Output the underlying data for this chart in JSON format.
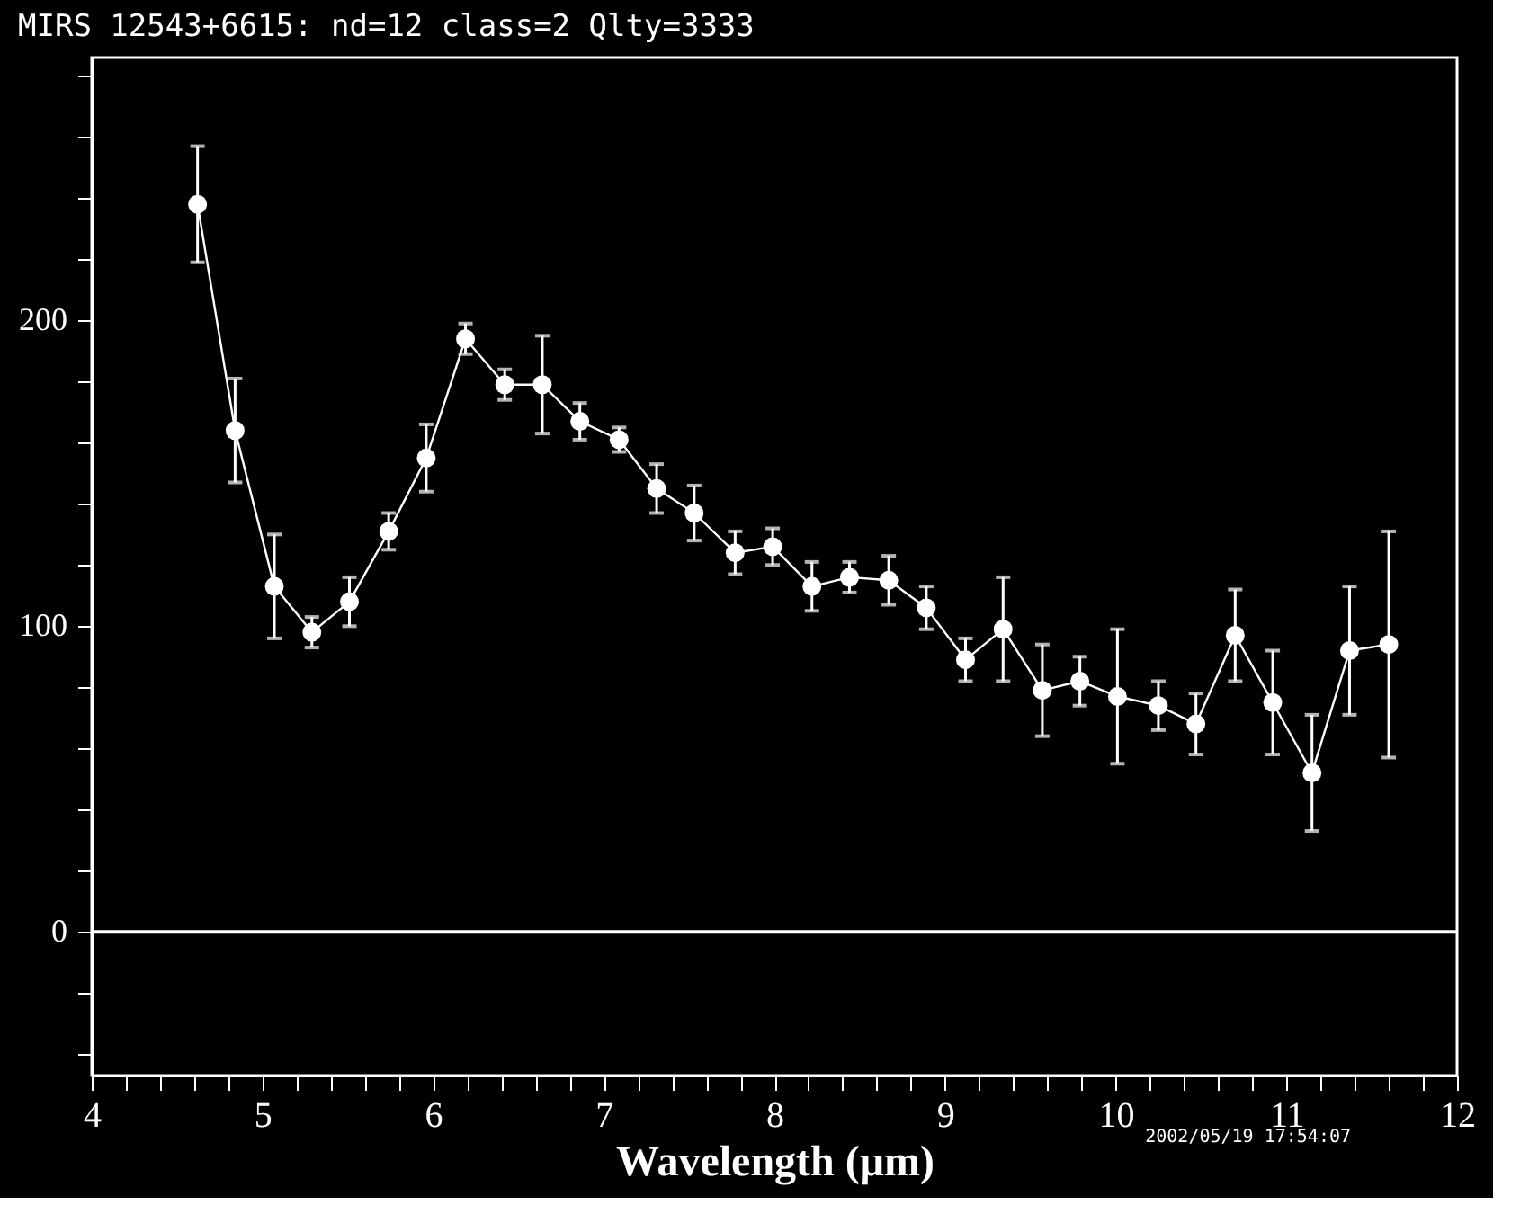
{
  "chart_data": {
    "type": "line",
    "title": "MIRS 12543+6615:    nd=12   class=2   Qlty=3333",
    "xlabel": "Wavelength (μm)",
    "annotations": [
      "2002/05/19 17:54:07"
    ],
    "x": [
      4.62,
      4.84,
      5.07,
      5.29,
      5.51,
      5.74,
      5.96,
      6.19,
      6.42,
      6.64,
      6.86,
      7.09,
      7.31,
      7.53,
      7.77,
      7.99,
      8.22,
      8.44,
      8.67,
      8.89,
      9.12,
      9.34,
      9.57,
      9.79,
      10.01,
      10.25,
      10.47,
      10.7,
      10.92,
      11.15,
      11.37,
      11.6
    ],
    "series": [
      {
        "color": "#ffffff",
        "values": [
          238,
          164,
          113,
          98,
          108,
          131,
          155,
          194,
          179,
          179,
          167,
          161,
          145,
          137,
          124,
          126,
          113,
          116,
          115,
          106,
          89,
          99,
          79,
          82,
          77,
          74,
          68,
          97,
          75,
          52,
          92,
          94
        ],
        "errors": [
          19,
          17,
          17,
          5,
          8,
          6,
          11,
          5,
          5,
          16,
          6,
          4,
          8,
          9,
          7,
          6,
          8,
          5,
          8,
          7,
          7,
          17,
          15,
          8,
          22,
          8,
          10,
          15,
          17,
          19,
          21,
          37
        ]
      }
    ],
    "xlim": [
      4,
      12
    ],
    "ylim": [
      -47,
      286
    ],
    "xticks": [
      4,
      {
        "value": 4.2,
        "label": null
      },
      {
        "value": 4.4,
        "label": null
      },
      {
        "value": 4.6,
        "label": null
      },
      {
        "value": 4.8,
        "label": null
      },
      5,
      {
        "value": 5.2,
        "label": null
      },
      {
        "value": 5.4,
        "label": null
      },
      {
        "value": 5.6,
        "label": null
      },
      {
        "value": 5.8,
        "label": null
      },
      6,
      {
        "value": 6.2,
        "label": null
      },
      {
        "value": 6.4,
        "label": null
      },
      {
        "value": 6.6,
        "label": null
      },
      {
        "value": 6.8,
        "label": null
      },
      7,
      {
        "value": 7.2,
        "label": null
      },
      {
        "value": 7.4,
        "label": null
      },
      {
        "value": 7.6,
        "label": null
      },
      {
        "value": 7.8,
        "label": null
      },
      8,
      {
        "value": 8.2,
        "label": null
      },
      {
        "value": 8.4,
        "label": null
      },
      {
        "value": 8.6,
        "label": null
      },
      {
        "value": 8.8,
        "label": null
      },
      9,
      {
        "value": 9.2,
        "label": null
      },
      {
        "value": 9.4,
        "label": null
      },
      {
        "value": 9.6,
        "label": null
      },
      {
        "value": 9.8,
        "label": null
      },
      10,
      {
        "value": 10.2,
        "label": null
      },
      {
        "value": 10.4,
        "label": null
      },
      {
        "value": 10.6,
        "label": null
      },
      {
        "value": 10.8,
        "label": null
      },
      11,
      {
        "value": 11.2,
        "label": null
      },
      {
        "value": 11.4,
        "label": null
      },
      {
        "value": 11.6,
        "label": null
      },
      {
        "value": 11.8,
        "label": null
      },
      12
    ],
    "yticks": [
      {
        "value": -40,
        "label": null
      },
      {
        "value": -20,
        "label": null
      },
      0,
      {
        "value": 20,
        "label": null
      },
      {
        "value": 40,
        "label": null
      },
      {
        "value": 60,
        "label": null
      },
      {
        "value": 80,
        "label": null
      },
      100,
      {
        "value": 120,
        "label": null
      },
      {
        "value": 140,
        "label": null
      },
      {
        "value": 160,
        "label": null
      },
      {
        "value": 180,
        "label": null
      },
      200,
      {
        "value": 220,
        "label": null
      },
      {
        "value": 240,
        "label": null
      },
      {
        "value": 260,
        "label": null
      },
      {
        "value": 280,
        "label": null
      }
    ],
    "ref_lines": [
      {
        "axis": "y",
        "value": 0,
        "color": "#ffffff"
      }
    ],
    "marker": "circle",
    "line_style": "solid",
    "grid": false
  }
}
